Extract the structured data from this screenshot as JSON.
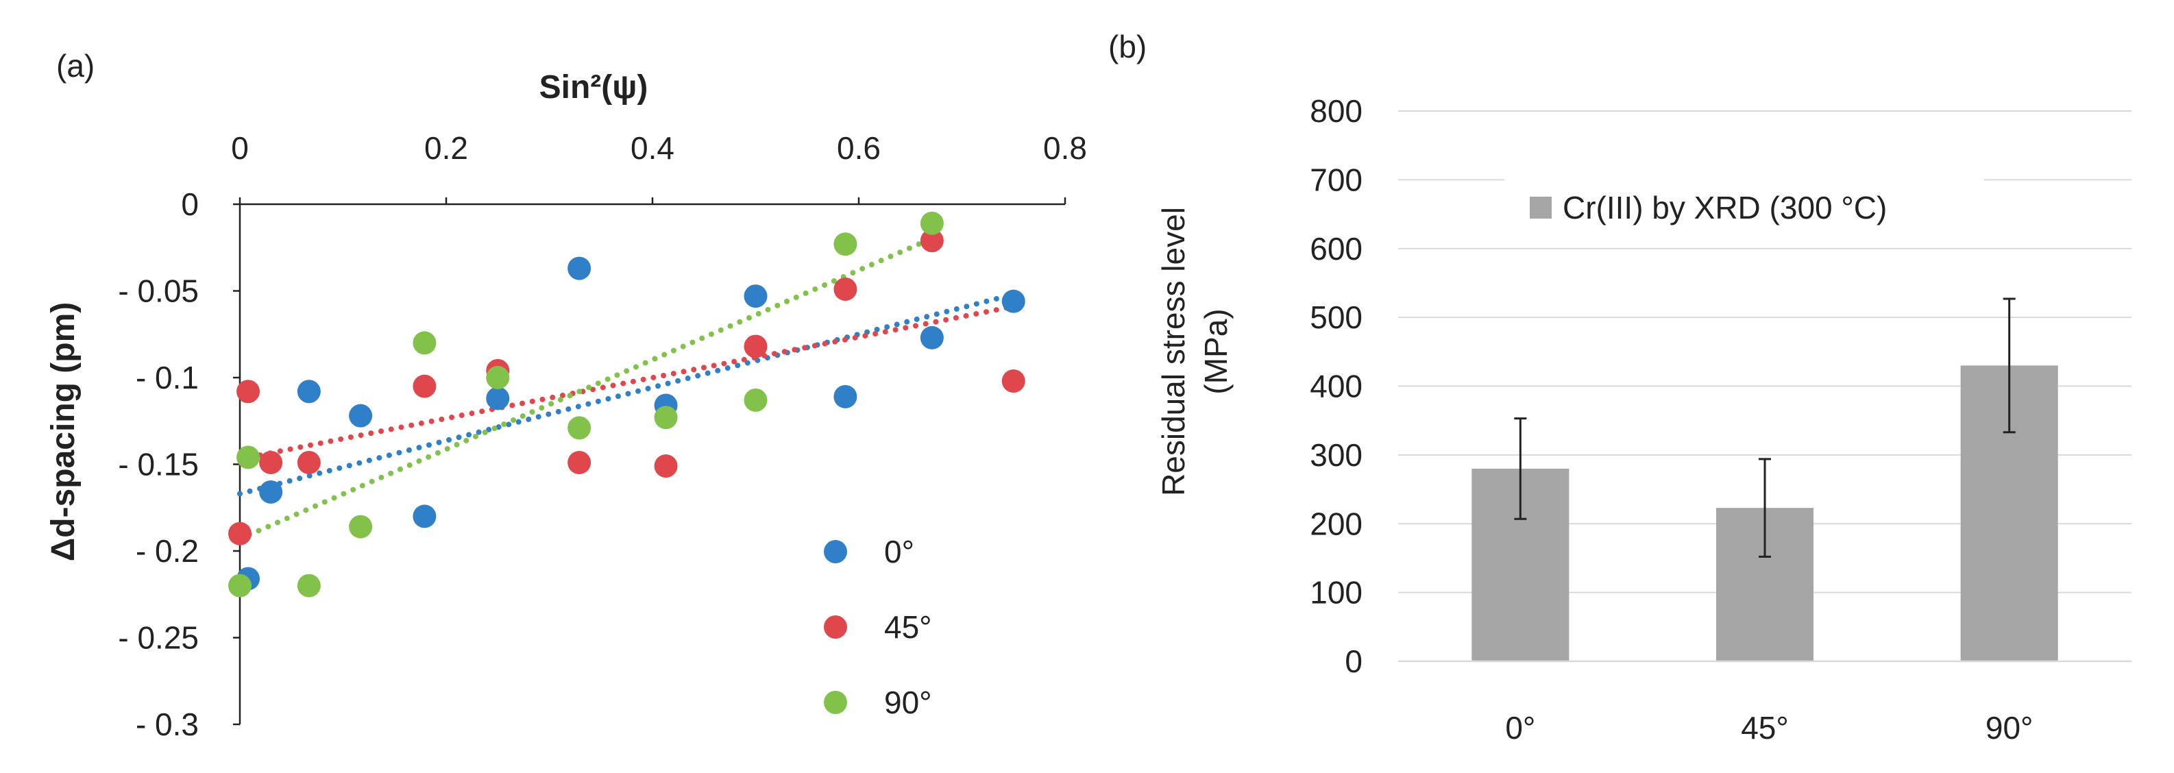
{
  "colors": {
    "series_0": "#2f80c8",
    "series_45": "#e0474c",
    "series_90": "#82c24a",
    "bar": "#a5a5a5",
    "axis": "#222222",
    "grid": "#d9d9d9",
    "text": "#222222"
  },
  "chart_data": [
    {
      "type": "scatter",
      "panel_label": "(a)",
      "title": "",
      "xlabel": "Sin²(ψ)",
      "ylabel": "Δd-spacing (pm)",
      "xlim": [
        0,
        0.8
      ],
      "ylim": [
        -0.3,
        0
      ],
      "x_ticks": [
        0,
        0.2,
        0.4,
        0.6,
        0.8
      ],
      "x_tick_labels": [
        "0",
        "0.2",
        "0.4",
        "0.6",
        "0.8"
      ],
      "y_ticks": [
        0,
        -0.05,
        -0.1,
        -0.15,
        -0.2,
        -0.25,
        -0.3
      ],
      "y_tick_labels": [
        "0",
        "- 0.05",
        "- 0.1",
        "- 0.15",
        "- 0.2",
        "- 0.25",
        "- 0.3"
      ],
      "x_axis_position": "top",
      "grid": false,
      "legend_position": "bottom-right",
      "series": [
        {
          "name": "0°",
          "color_key": "series_0",
          "points": [
            [
              0.008,
              -0.216
            ],
            [
              0.03,
              -0.166
            ],
            [
              0.067,
              -0.108
            ],
            [
              0.117,
              -0.122
            ],
            [
              0.179,
              -0.18
            ],
            [
              0.25,
              -0.112
            ],
            [
              0.329,
              -0.037
            ],
            [
              0.413,
              -0.116
            ],
            [
              0.5,
              -0.053
            ],
            [
              0.587,
              -0.111
            ],
            [
              0.671,
              -0.077
            ],
            [
              0.75,
              -0.056
            ]
          ],
          "trend": {
            "x": [
              0,
              0.75
            ],
            "y": [
              -0.167,
              -0.052
            ]
          }
        },
        {
          "name": "45°",
          "color_key": "series_45",
          "points": [
            [
              0.0,
              -0.19
            ],
            [
              0.008,
              -0.108
            ],
            [
              0.03,
              -0.149
            ],
            [
              0.067,
              -0.149
            ],
            [
              0.179,
              -0.105
            ],
            [
              0.25,
              -0.096
            ],
            [
              0.329,
              -0.149
            ],
            [
              0.413,
              -0.151
            ],
            [
              0.5,
              -0.082
            ],
            [
              0.587,
              -0.049
            ],
            [
              0.671,
              -0.021
            ],
            [
              0.75,
              -0.102
            ]
          ],
          "trend": {
            "x": [
              0,
              0.75
            ],
            "y": [
              -0.147,
              -0.059
            ]
          }
        },
        {
          "name": "90°",
          "color_key": "series_90",
          "points": [
            [
              0.0,
              -0.22
            ],
            [
              0.008,
              -0.146
            ],
            [
              0.067,
              -0.22
            ],
            [
              0.117,
              -0.186
            ],
            [
              0.179,
              -0.08
            ],
            [
              0.25,
              -0.1
            ],
            [
              0.329,
              -0.129
            ],
            [
              0.413,
              -0.123
            ],
            [
              0.5,
              -0.113
            ],
            [
              0.587,
              -0.023
            ],
            [
              0.671,
              -0.011
            ]
          ],
          "trend": {
            "x": [
              0,
              0.67
            ],
            "y": [
              -0.193,
              -0.02
            ]
          }
        }
      ]
    },
    {
      "type": "bar",
      "panel_label": "(b)",
      "title": "",
      "xlabel": "",
      "ylabel_lines": [
        "Residual stress level",
        "(MPa)"
      ],
      "categories": [
        "0°",
        "45°",
        "90°"
      ],
      "series": [
        {
          "name": "Cr(III) by XRD (300 °C)",
          "color_key": "bar",
          "values": [
            280,
            223,
            430
          ],
          "error": [
            73,
            71,
            97
          ]
        }
      ],
      "ylim": [
        0,
        800
      ],
      "y_ticks": [
        0,
        100,
        200,
        300,
        400,
        500,
        600,
        700,
        800
      ],
      "grid": true,
      "legend_position": "top-center"
    }
  ]
}
